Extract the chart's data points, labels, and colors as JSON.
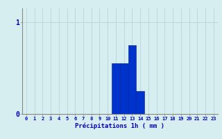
{
  "hours": [
    0,
    1,
    2,
    3,
    4,
    5,
    6,
    7,
    8,
    9,
    10,
    11,
    12,
    13,
    14,
    15,
    16,
    17,
    18,
    19,
    20,
    21,
    22,
    23
  ],
  "values": [
    0,
    0,
    0,
    0,
    0,
    0,
    0,
    0,
    0,
    0,
    0,
    0.55,
    0.55,
    0.75,
    0.25,
    0,
    0,
    0,
    0,
    0,
    0,
    0,
    0,
    0
  ],
  "bar_color": "#0033cc",
  "bar_edge_color": "#001a99",
  "background_color": "#d6eef0",
  "grid_color": "#b8d4d8",
  "axis_color": "#888888",
  "xlabel": "Précipitations 1h ( mm )",
  "xlabel_color": "#0000bb",
  "tick_color": "#0000bb",
  "ytick_labels": [
    "0",
    "1"
  ],
  "ytick_values": [
    0,
    1
  ],
  "ylim": [
    0,
    1.15
  ],
  "xlim": [
    -0.5,
    23.5
  ]
}
